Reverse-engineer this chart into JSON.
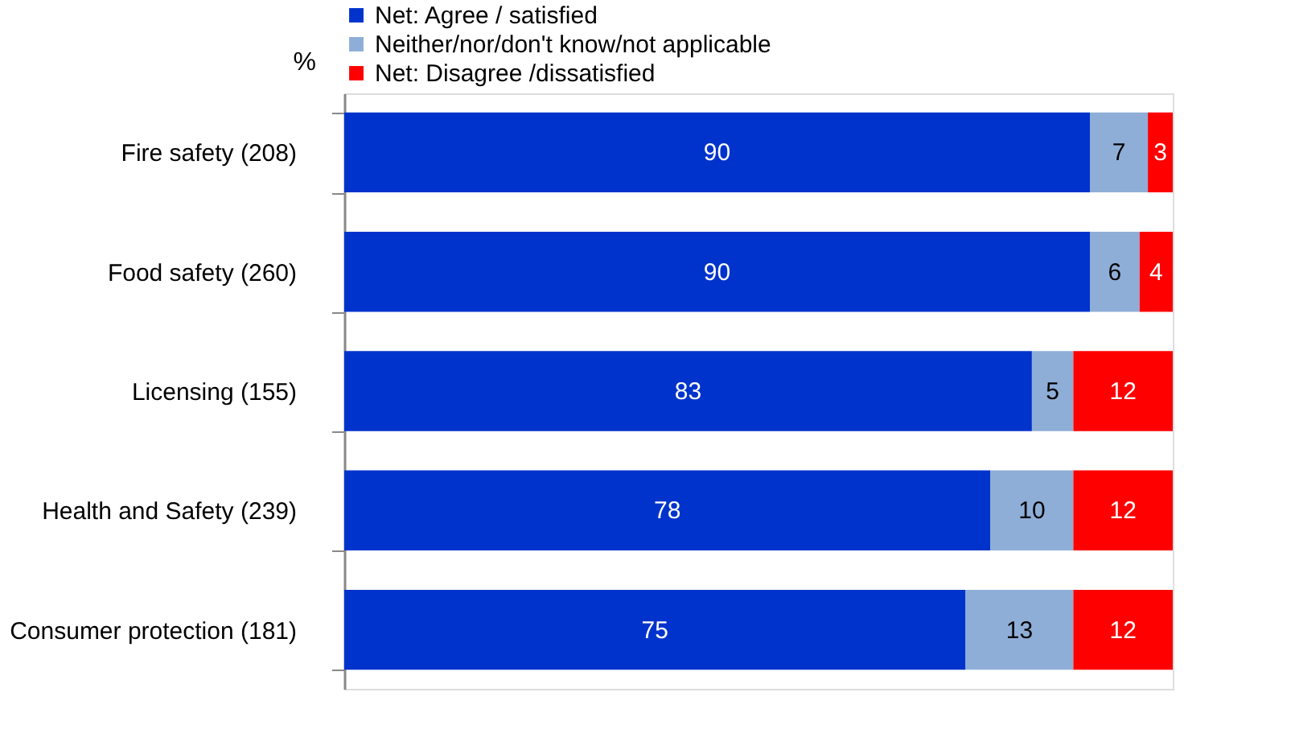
{
  "chart_data": {
    "type": "bar",
    "orientation": "horizontal",
    "stacked": true,
    "data_labels": true,
    "ylabel": "%",
    "legend": "top",
    "grid": false,
    "categories": [
      "Fire safety (208)",
      "Food safety (260)",
      "Licensing (155)",
      "Health  and Safety (239)",
      "Consumer protection (181)"
    ],
    "series": [
      {
        "name": "Net: Agree / satisfied",
        "color": "#0033cc",
        "values": [
          90,
          90,
          83,
          78,
          75
        ]
      },
      {
        "name": "Neither/nor/don't know/not applicable",
        "color": "#8eaed8",
        "values": [
          7,
          6,
          5,
          10,
          13
        ]
      },
      {
        "name": "Net: Disagree /dissatisfied",
        "color": "#ff0000",
        "values": [
          3,
          4,
          12,
          12,
          12
        ]
      }
    ]
  }
}
